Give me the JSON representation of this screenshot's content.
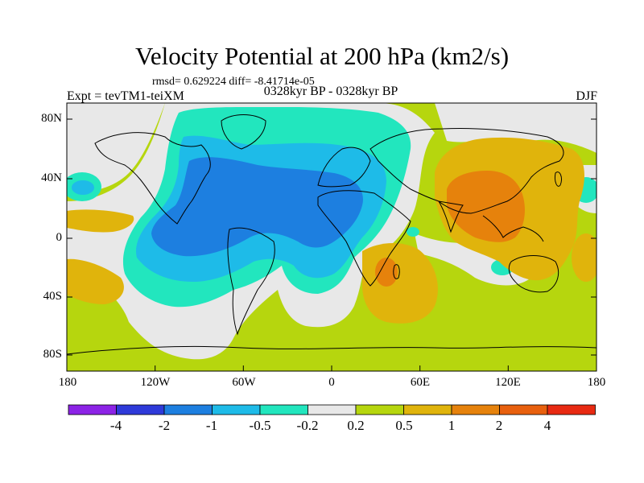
{
  "title": "Velocity Potential at 200 hPa (km2/s)",
  "stats": "rmsd= 0.629224 diff= -8.41714e-05",
  "experiment": "Expt = tevTM1-teiXM",
  "period": "0328kyr BP - 0328kyr BP",
  "season": "DJF",
  "axes": {
    "lon_ticks": [
      "180",
      "120W",
      "60W",
      "0",
      "60E",
      "120E",
      "180"
    ],
    "lat_ticks": [
      "80N",
      "40N",
      "0",
      "40S",
      "80S"
    ]
  },
  "colorbar": {
    "colors": [
      "#8c23e6",
      "#2e3ad9",
      "#1d7fe0",
      "#1ebbe8",
      "#22e6be",
      "#e8e8e8",
      "#b6d60e",
      "#e0b40c",
      "#e6820c",
      "#e8600e",
      "#e82a12"
    ],
    "labels": [
      "-4",
      "-2",
      "-1",
      "-0.5",
      "-0.2",
      "0.2",
      "0.5",
      "1",
      "2",
      "4"
    ]
  },
  "legend": {
    "background": "#b6d60e",
    "neutral": "#e8e8e8",
    "neg_weak": "#22e6be",
    "neg_mid": "#1ebbe8",
    "neg_strong": "#1d7fe0",
    "pos_weak": "#e0b40c",
    "pos_mid": "#e6820c",
    "pos_strong": "#e8600e"
  }
}
